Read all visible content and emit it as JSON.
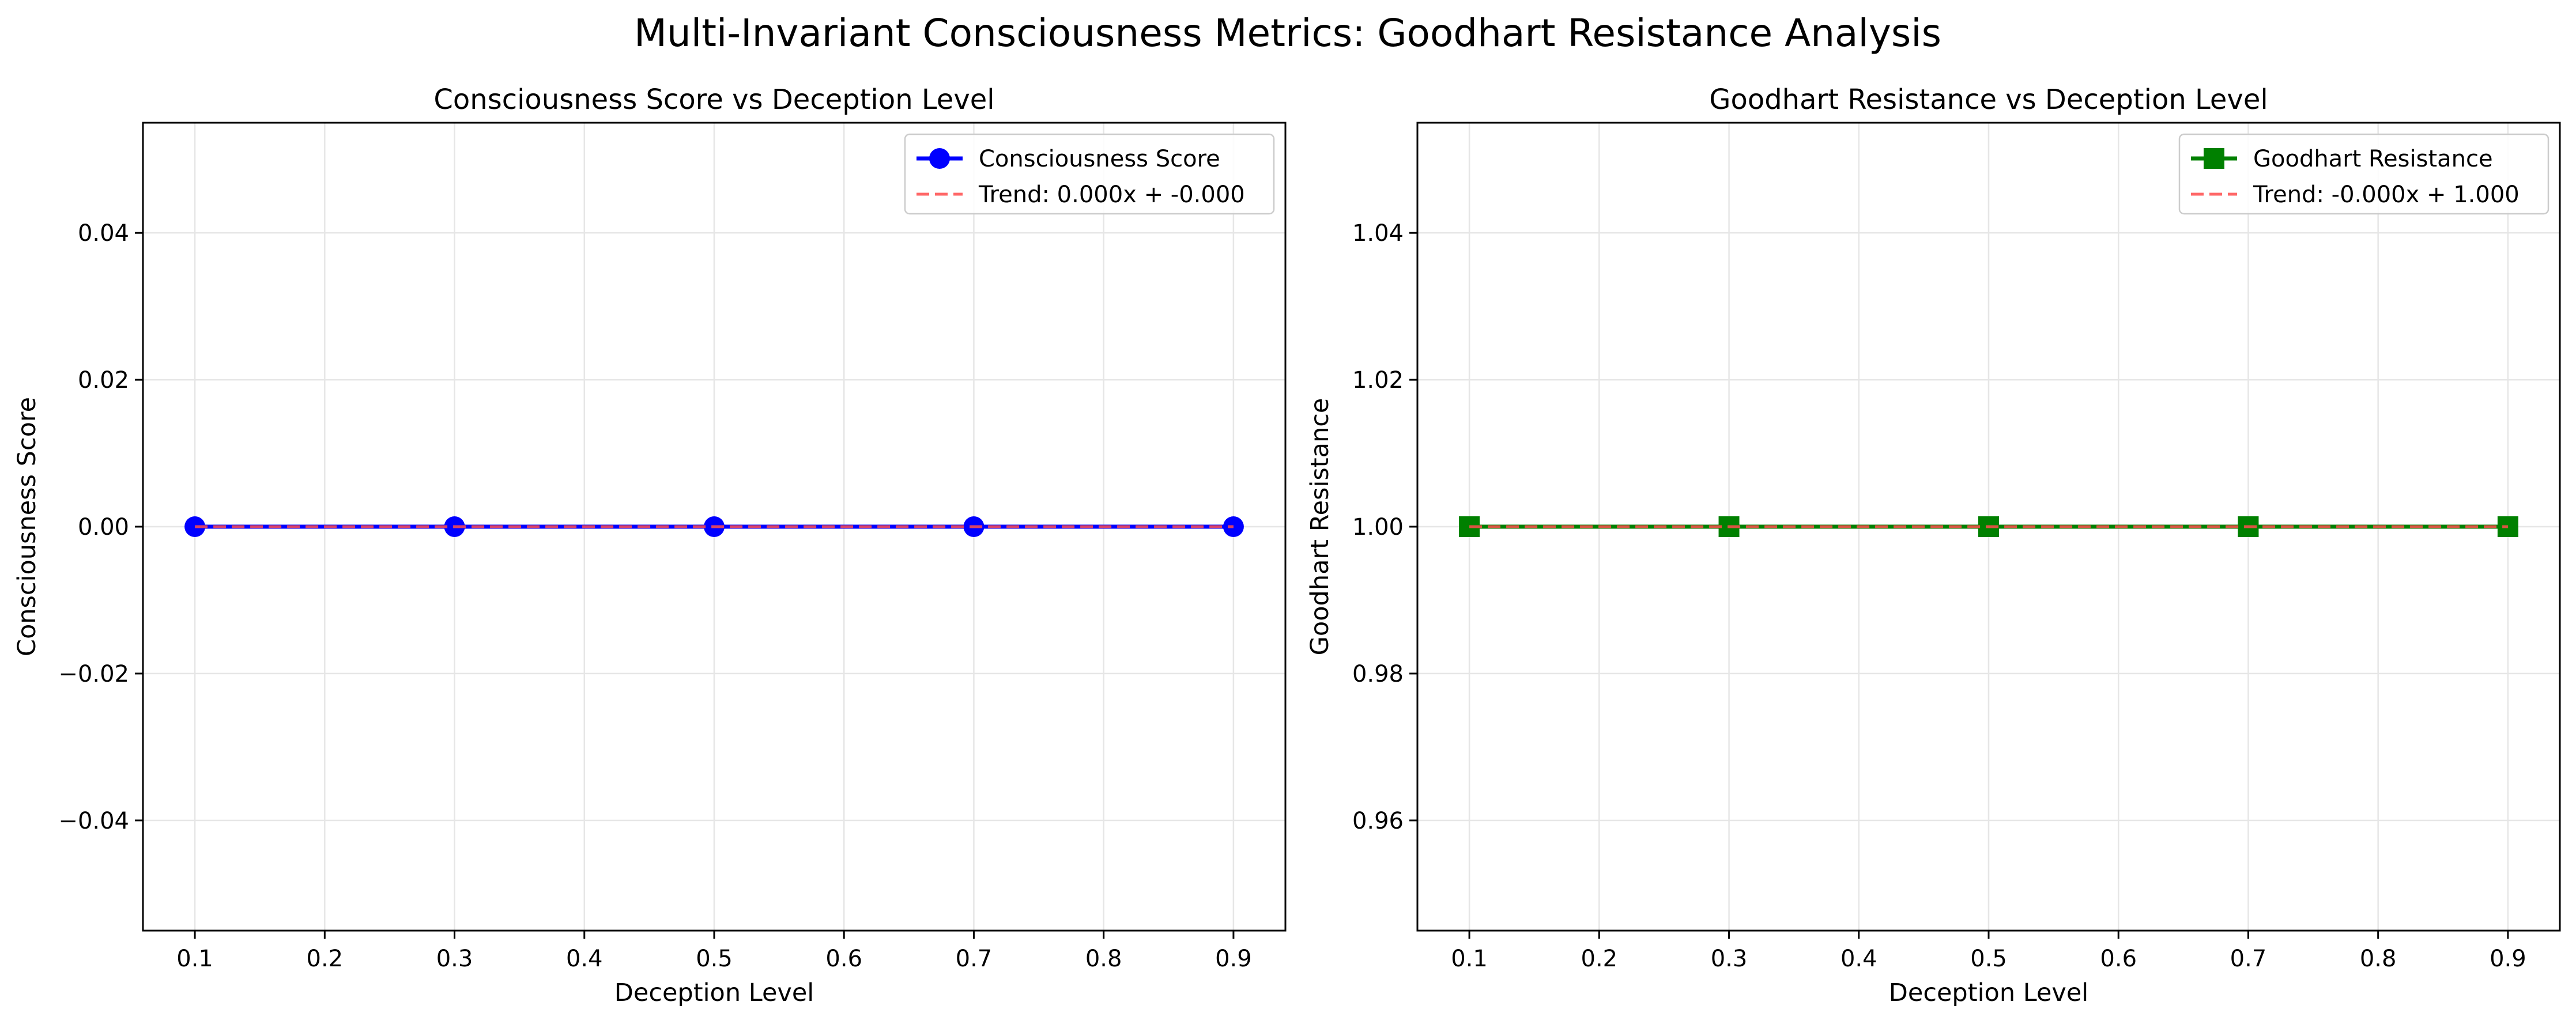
{
  "figure": {
    "title": "Multi-Invariant Consciousness Metrics: Goodhart Resistance Analysis"
  },
  "colors": {
    "grid": "#e6e6e6",
    "axis": "#000000",
    "trend": "#ff4d4d",
    "legend_border": "#cccccc"
  },
  "chart_data": [
    {
      "type": "line",
      "title": "Consciousness Score vs Deception Level",
      "xlabel": "Deception Level",
      "ylabel": "Consciousness Score",
      "xlim": [
        0.06,
        0.94
      ],
      "ylim": [
        -0.055,
        0.055
      ],
      "xticks": [
        0.1,
        0.2,
        0.3,
        0.4,
        0.5,
        0.6,
        0.7,
        0.8,
        0.9
      ],
      "xtick_labels": [
        "0.1",
        "0.2",
        "0.3",
        "0.4",
        "0.5",
        "0.6",
        "0.7",
        "0.8",
        "0.9"
      ],
      "yticks": [
        -0.04,
        -0.02,
        0.0,
        0.02,
        0.04
      ],
      "ytick_labels": [
        "−0.04",
        "−0.02",
        "0.00",
        "0.02",
        "0.04"
      ],
      "grid": true,
      "legend_position": "top-right",
      "series": [
        {
          "name": "Consciousness Score",
          "color": "#0000ff",
          "marker": "circle",
          "style": "solid",
          "x": [
            0.1,
            0.3,
            0.5,
            0.7,
            0.9
          ],
          "y": [
            0.0,
            0.0,
            0.0,
            0.0,
            0.0
          ]
        },
        {
          "name": "Trend: 0.000x + -0.000",
          "color": "#ff4d4d",
          "marker": "none",
          "style": "dashed",
          "x": [
            0.1,
            0.9
          ],
          "y": [
            0.0,
            0.0
          ]
        }
      ]
    },
    {
      "type": "line",
      "title": "Goodhart Resistance vs Deception Level",
      "xlabel": "Deception Level",
      "ylabel": "Goodhart Resistance",
      "xlim": [
        0.06,
        0.94
      ],
      "ylim": [
        0.945,
        1.055
      ],
      "xticks": [
        0.1,
        0.2,
        0.3,
        0.4,
        0.5,
        0.6,
        0.7,
        0.8,
        0.9
      ],
      "xtick_labels": [
        "0.1",
        "0.2",
        "0.3",
        "0.4",
        "0.5",
        "0.6",
        "0.7",
        "0.8",
        "0.9"
      ],
      "yticks": [
        0.96,
        0.98,
        1.0,
        1.02,
        1.04
      ],
      "ytick_labels": [
        "0.96",
        "0.98",
        "1.00",
        "1.02",
        "1.04"
      ],
      "grid": true,
      "legend_position": "top-right",
      "series": [
        {
          "name": "Goodhart Resistance",
          "color": "#008000",
          "marker": "square",
          "style": "solid",
          "x": [
            0.1,
            0.3,
            0.5,
            0.7,
            0.9
          ],
          "y": [
            1.0,
            1.0,
            1.0,
            1.0,
            1.0
          ]
        },
        {
          "name": "Trend: -0.000x + 1.000",
          "color": "#ff4d4d",
          "marker": "none",
          "style": "dashed",
          "x": [
            0.1,
            0.9
          ],
          "y": [
            1.0,
            1.0
          ]
        }
      ]
    }
  ]
}
